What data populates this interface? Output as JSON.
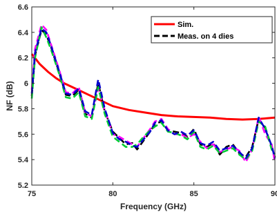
{
  "chart_data": {
    "type": "line",
    "title": "",
    "xlabel": "Frequency (GHz)",
    "ylabel": "NF (dB)",
    "xlim": [
      75,
      90
    ],
    "ylim": [
      5.2,
      6.6
    ],
    "x_ticks": [
      75,
      80,
      85,
      90
    ],
    "y_ticks": [
      5.2,
      5.4,
      5.6,
      5.8,
      6,
      6.2,
      6.4,
      6.6
    ],
    "grid": false,
    "legend_position": "top-right",
    "series": [
      {
        "name": "Sim.",
        "color": "#ff0000",
        "style": "solid",
        "x": [
          75,
          75.5,
          76,
          76.5,
          77,
          77.5,
          78,
          78.5,
          79,
          79.5,
          80,
          81,
          82,
          83,
          84,
          85,
          86,
          87,
          88,
          89,
          89.5,
          90
        ],
        "y": [
          6.23,
          6.15,
          6.09,
          6.04,
          6.0,
          5.97,
          5.94,
          5.91,
          5.88,
          5.85,
          5.82,
          5.79,
          5.77,
          5.75,
          5.74,
          5.735,
          5.73,
          5.72,
          5.715,
          5.72,
          5.725,
          5.73
        ]
      },
      {
        "name": "Meas. on 4 dies",
        "color": "#000000",
        "style": "dashed",
        "x": [
          75,
          75.2,
          75.6,
          75.9,
          76.2,
          76.7,
          77.1,
          77.5,
          77.9,
          78.3,
          78.7,
          79.1,
          79.5,
          80,
          80.4,
          80.8,
          81.2,
          81.5,
          81.9,
          82.3,
          82.6,
          83,
          83.4,
          83.8,
          84.2,
          84.6,
          85,
          85.4,
          85.8,
          86.2,
          86.6,
          87,
          87.4,
          87.8,
          88.2,
          88.6,
          89,
          89.4,
          89.8,
          90
        ],
        "y": [
          5.9,
          6.22,
          6.42,
          6.38,
          6.28,
          6.08,
          5.91,
          5.9,
          5.95,
          5.76,
          5.73,
          6.0,
          5.78,
          5.62,
          5.57,
          5.52,
          5.53,
          5.48,
          5.55,
          5.62,
          5.68,
          5.7,
          5.63,
          5.62,
          5.61,
          5.58,
          5.64,
          5.52,
          5.5,
          5.53,
          5.44,
          5.5,
          5.52,
          5.45,
          5.42,
          5.5,
          5.72,
          5.65,
          5.5,
          5.42
        ]
      },
      {
        "name": "",
        "color": "#ff00ff",
        "style": "dashed",
        "x": [
          75,
          75.2,
          75.6,
          75.9,
          76.2,
          76.7,
          77.1,
          77.5,
          77.9,
          78.3,
          78.7,
          79.1,
          79.5,
          80,
          80.4,
          80.8,
          81.2,
          81.5,
          81.9,
          82.3,
          82.6,
          83,
          83.4,
          83.8,
          84.2,
          84.6,
          85,
          85.4,
          85.8,
          86.2,
          86.6,
          87,
          87.4,
          87.8,
          88.2,
          88.6,
          89,
          89.4,
          89.8,
          90
        ],
        "y": [
          5.95,
          6.27,
          6.46,
          6.42,
          6.3,
          6.1,
          5.93,
          5.92,
          5.97,
          5.77,
          5.74,
          5.96,
          5.79,
          5.6,
          5.58,
          5.55,
          5.52,
          5.5,
          5.57,
          5.64,
          5.7,
          5.72,
          5.64,
          5.6,
          5.6,
          5.57,
          5.6,
          5.54,
          5.49,
          5.52,
          5.46,
          5.48,
          5.5,
          5.47,
          5.38,
          5.48,
          5.74,
          5.6,
          5.52,
          5.38
        ]
      },
      {
        "name": "",
        "color": "#00cc33",
        "style": "dashed",
        "x": [
          75,
          75.2,
          75.6,
          75.9,
          76.2,
          76.7,
          77.1,
          77.5,
          77.9,
          78.3,
          78.7,
          79.1,
          79.5,
          80,
          80.4,
          80.8,
          81.2,
          81.5,
          81.9,
          82.3,
          82.6,
          83,
          83.4,
          83.8,
          84.2,
          84.6,
          85,
          85.4,
          85.8,
          86.2,
          86.6,
          87,
          87.4,
          87.8,
          88.2,
          88.6,
          89,
          89.4,
          89.8,
          90
        ],
        "y": [
          5.88,
          6.2,
          6.44,
          6.36,
          6.26,
          6.07,
          5.89,
          5.88,
          5.93,
          5.74,
          5.72,
          5.97,
          5.76,
          5.58,
          5.54,
          5.5,
          5.5,
          5.52,
          5.58,
          5.63,
          5.66,
          5.69,
          5.62,
          5.61,
          5.59,
          5.56,
          5.62,
          5.5,
          5.48,
          5.51,
          5.45,
          5.47,
          5.49,
          5.44,
          5.4,
          5.47,
          5.7,
          5.66,
          5.48,
          5.44
        ]
      },
      {
        "name": "",
        "color": "#0000cc",
        "style": "dashed",
        "x": [
          75,
          75.2,
          75.6,
          75.9,
          76.2,
          76.7,
          77.1,
          77.5,
          77.9,
          78.3,
          78.7,
          79.1,
          79.5,
          80,
          80.4,
          80.8,
          81.2,
          81.5,
          81.9,
          82.3,
          82.6,
          83,
          83.4,
          83.8,
          84.2,
          84.6,
          85,
          85.4,
          85.8,
          86.2,
          86.6,
          87,
          87.4,
          87.8,
          88.2,
          88.6,
          89,
          89.4,
          89.8,
          90
        ],
        "y": [
          5.92,
          6.24,
          6.43,
          6.4,
          6.29,
          6.09,
          5.92,
          5.91,
          5.96,
          5.78,
          5.75,
          6.03,
          5.8,
          5.61,
          5.56,
          5.54,
          5.51,
          5.5,
          5.56,
          5.62,
          5.69,
          5.71,
          5.63,
          5.6,
          5.62,
          5.59,
          5.63,
          5.53,
          5.51,
          5.54,
          5.47,
          5.49,
          5.51,
          5.46,
          5.41,
          5.49,
          5.73,
          5.64,
          5.51,
          5.41
        ]
      }
    ]
  }
}
